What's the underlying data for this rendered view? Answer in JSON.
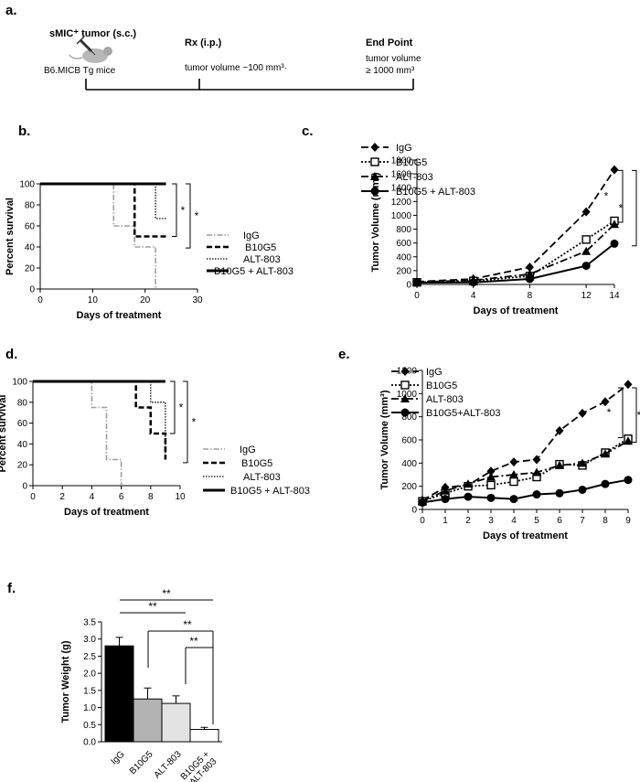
{
  "panels": {
    "a": "a.",
    "b": "b.",
    "c": "c.",
    "d": "d.",
    "e": "e.",
    "f": "f."
  },
  "timeline": {
    "tumor_label": "sMIC⁺ tumor (s.c.)",
    "mice_label": "B6.MICB Tg mice",
    "rx_label": "Rx (i.p.)",
    "rx_detail": "tumor volume ~100 mm³·",
    "end_label": "End Point",
    "end_detail_1": "tumor volume",
    "end_detail_2": "≥ 1000 mm³"
  },
  "colors": {
    "igg": "#9e9e9e",
    "black": "#000000",
    "bar_b10g5": "#b3b3b3",
    "bar_alt": "#e3e3e3"
  },
  "chart_data": [
    {
      "id": "b",
      "type": "line",
      "subtype": "kaplan-meier",
      "xlabel": "Days of treatment",
      "ylabel": "Percent survival",
      "xlim": [
        0,
        30
      ],
      "ylim": [
        0,
        100
      ],
      "xticks": [
        0,
        10,
        20,
        30
      ],
      "yticks": [
        0,
        20,
        40,
        60,
        80,
        100
      ],
      "series": [
        {
          "name": "IgG",
          "steps": [
            [
              0,
              100
            ],
            [
              14,
              100
            ],
            [
              14,
              60
            ],
            [
              18,
              60
            ],
            [
              18,
              40
            ],
            [
              22,
              40
            ],
            [
              22,
              0
            ]
          ]
        },
        {
          "name": "B10G5",
          "steps": [
            [
              0,
              100
            ],
            [
              18,
              100
            ],
            [
              18,
              50
            ],
            [
              24,
              50
            ]
          ]
        },
        {
          "name": "ALT-803",
          "steps": [
            [
              0,
              100
            ],
            [
              22,
              100
            ],
            [
              22,
              67
            ],
            [
              24,
              67
            ]
          ]
        },
        {
          "name": "B10G5 + ALT-803",
          "steps": [
            [
              0,
              100
            ],
            [
              24,
              100
            ]
          ]
        }
      ],
      "significance": [
        "*",
        "*"
      ]
    },
    {
      "id": "c",
      "type": "line",
      "xlabel": "Days of treatment",
      "ylabel": "Tumor Volume (mm³)",
      "xlim": [
        0,
        14
      ],
      "ylim": [
        0,
        1800
      ],
      "xticks": [
        0,
        4,
        8,
        12,
        14
      ],
      "yticks": [
        0,
        200,
        400,
        600,
        800,
        1000,
        1200,
        1400,
        1600,
        1800
      ],
      "x": [
        0,
        4,
        8,
        12,
        14
      ],
      "series": [
        {
          "name": "IgG",
          "values": [
            40,
            80,
            250,
            1050,
            1660
          ]
        },
        {
          "name": "B10G5",
          "values": [
            30,
            50,
            120,
            650,
            920
          ]
        },
        {
          "name": "ALT-803",
          "values": [
            35,
            60,
            150,
            480,
            870
          ]
        },
        {
          "name": "B10G5 + ALT-803",
          "values": [
            25,
            30,
            80,
            270,
            590
          ]
        }
      ],
      "significance": [
        "*",
        "*"
      ]
    },
    {
      "id": "d",
      "type": "line",
      "subtype": "kaplan-meier",
      "xlabel": "Days of treatment",
      "ylabel": "Percent survival",
      "xlim": [
        0,
        10
      ],
      "ylim": [
        0,
        100
      ],
      "xticks": [
        0,
        2,
        4,
        6,
        8,
        10
      ],
      "yticks": [
        0,
        20,
        40,
        60,
        80,
        100
      ],
      "series": [
        {
          "name": "IgG",
          "steps": [
            [
              0,
              100
            ],
            [
              4,
              100
            ],
            [
              4,
              75
            ],
            [
              5,
              75
            ],
            [
              5,
              25
            ],
            [
              6,
              25
            ],
            [
              6,
              0
            ]
          ]
        },
        {
          "name": "B10G5",
          "steps": [
            [
              0,
              100
            ],
            [
              7,
              100
            ],
            [
              7,
              75
            ],
            [
              8,
              75
            ],
            [
              8,
              50
            ],
            [
              9,
              50
            ],
            [
              9,
              25
            ]
          ]
        },
        {
          "name": "ALT-803",
          "steps": [
            [
              0,
              100
            ],
            [
              8,
              100
            ],
            [
              8,
              80
            ],
            [
              9,
              80
            ],
            [
              9,
              25
            ]
          ]
        },
        {
          "name": "B10G5 + ALT-803",
          "steps": [
            [
              0,
              100
            ],
            [
              9,
              100
            ]
          ]
        }
      ],
      "significance": [
        "*",
        "*"
      ]
    },
    {
      "id": "e",
      "type": "line",
      "xlabel": "Days of treatment",
      "ylabel": "Tumor Volume (mm³)",
      "xlim": [
        0,
        9
      ],
      "ylim": [
        0,
        1200
      ],
      "xticks": [
        0,
        1,
        2,
        3,
        4,
        5,
        6,
        7,
        8,
        9
      ],
      "yticks": [
        0,
        200,
        400,
        600,
        800,
        1000,
        1200
      ],
      "x": [
        0,
        1,
        2,
        3,
        4,
        5,
        6,
        7,
        8,
        9
      ],
      "series": [
        {
          "name": "IgG",
          "values": [
            80,
            190,
            210,
            330,
            410,
            430,
            680,
            830,
            930,
            1080
          ]
        },
        {
          "name": "B10G5",
          "values": [
            70,
            140,
            200,
            210,
            240,
            280,
            390,
            380,
            490,
            610
          ]
        },
        {
          "name": "ALT-803",
          "values": [
            75,
            160,
            220,
            280,
            300,
            320,
            380,
            400,
            480,
            590
          ]
        },
        {
          "name": "B10G5+ALT-803",
          "values": [
            60,
            90,
            110,
            100,
            90,
            130,
            140,
            170,
            220,
            255
          ]
        }
      ],
      "significance": [
        "*",
        "*"
      ]
    },
    {
      "id": "f",
      "type": "bar",
      "ylabel": "Tumor Weight (g)",
      "ylim": [
        0,
        3.5
      ],
      "yticks": [
        "0.0",
        "0.5",
        "1.0",
        "1.5",
        "2.0",
        "2.5",
        "3.0",
        "3.5"
      ],
      "categories": [
        "IgG",
        "B10G5",
        "ALT-803",
        "B10G5 + ALT-803"
      ],
      "category_lines": [
        [
          "IgG"
        ],
        [
          "B10G5"
        ],
        [
          "ALT-803"
        ],
        [
          "B10G5 +",
          "ALT-803"
        ]
      ],
      "values": [
        2.8,
        1.25,
        1.12,
        0.36
      ],
      "errors": [
        0.25,
        0.32,
        0.22,
        0.06
      ],
      "significance": [
        "**",
        "**",
        "**",
        "**"
      ]
    }
  ]
}
